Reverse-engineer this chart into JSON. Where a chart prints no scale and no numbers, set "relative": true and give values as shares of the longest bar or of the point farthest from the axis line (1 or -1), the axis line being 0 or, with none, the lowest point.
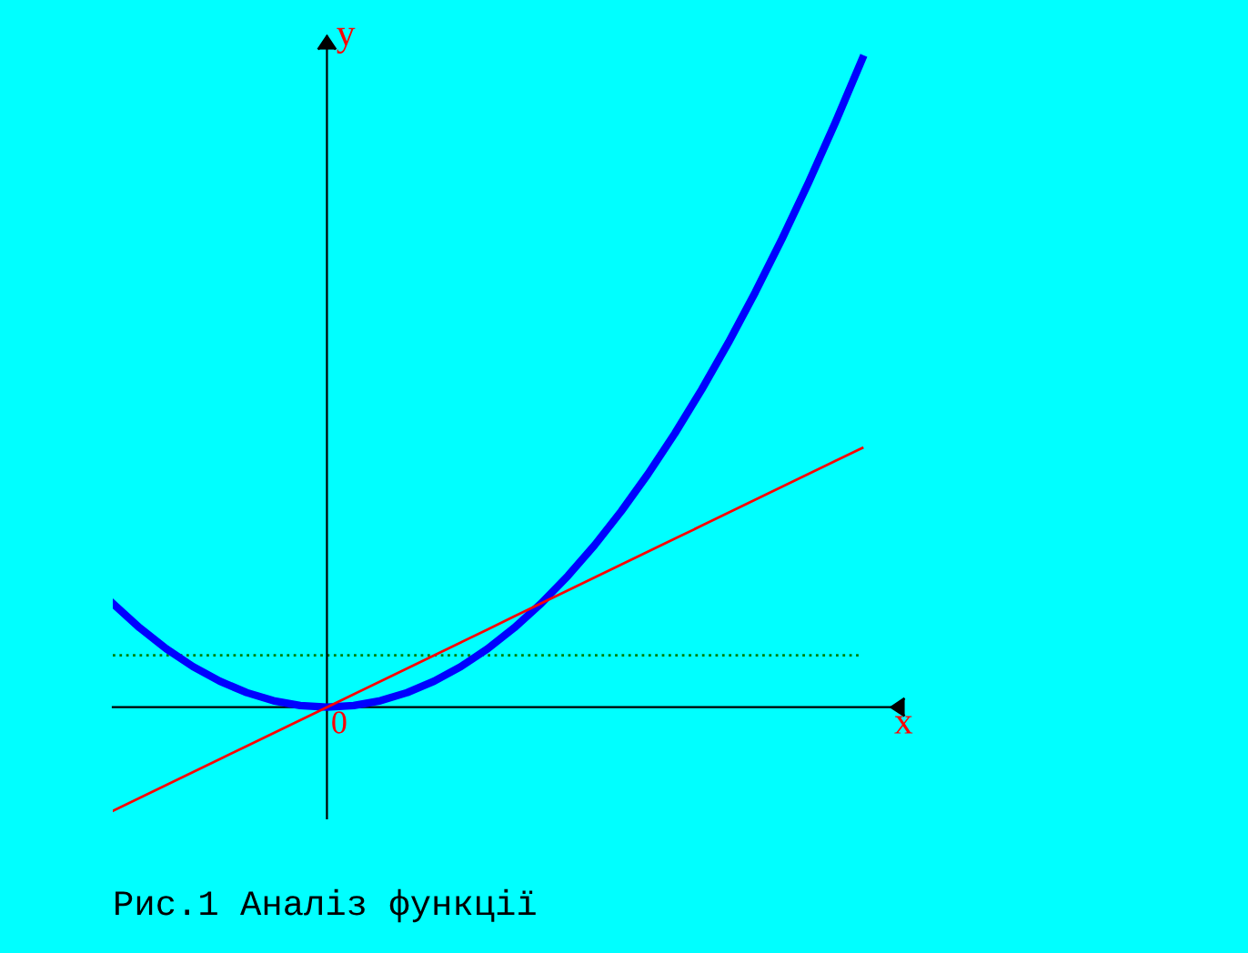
{
  "chart_data": {
    "type": "line",
    "relative": true,
    "xlabel": "x",
    "ylabel": "y",
    "categories": [
      null,
      null,
      null,
      null,
      null,
      null,
      null,
      null,
      null,
      null,
      null,
      null,
      null,
      null,
      null,
      null,
      null,
      null,
      null,
      null,
      null,
      null,
      null,
      null,
      null,
      null,
      null,
      null,
      null
    ],
    "series": [
      {
        "color": "#0000ff",
        "values": [
          0.16,
          0.1225,
          0.09,
          0.0625,
          0.04,
          0.0225,
          0.01,
          0.0025,
          0,
          0.0025,
          0.01,
          0.0225,
          0.04,
          0.0625,
          0.09,
          0.1225,
          0.16,
          0.2025,
          0.25,
          0.3025,
          0.36,
          0.4225,
          0.49,
          0.5625,
          0.64,
          0.7225,
          0.81,
          0.9025,
          1
        ]
      },
      {
        "color": "#ff0000",
        "values": [
          -0.16,
          -0.14,
          -0.12,
          -0.1,
          -0.08,
          -0.06,
          -0.04,
          -0.02,
          0,
          0.02,
          0.04,
          0.06,
          0.08,
          0.1,
          0.12,
          0.14,
          0.16,
          0.18,
          0.2,
          0.22,
          0.24,
          0.26,
          0.28,
          0.3,
          0.32,
          0.34,
          0.36,
          0.38,
          0.4
        ]
      }
    ],
    "ref_lines": [
      {
        "axis": "y",
        "value": 0.08,
        "color": "#008000",
        "line_style": "dotted"
      }
    ],
    "annotations": [
      "0",
      "Рис.1 Аналіз функції"
    ]
  }
}
